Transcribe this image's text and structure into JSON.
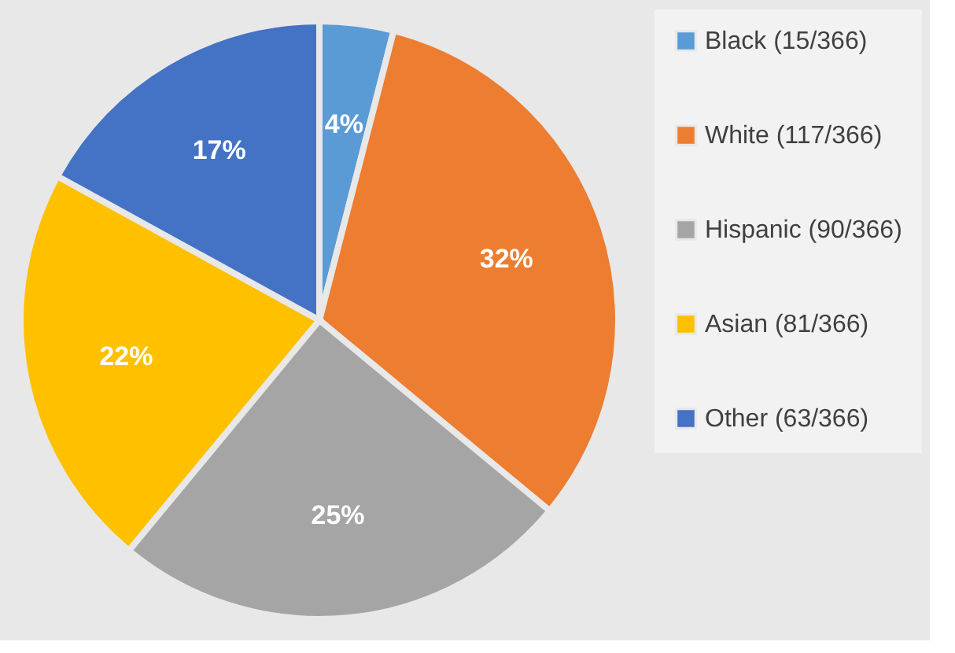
{
  "chart_data": {
    "type": "pie",
    "categories": [
      "Black (15/366)",
      "White (117/366)",
      "Hispanic (90/366)",
      "Asian (81/366)",
      "Other (63/366)"
    ],
    "values": [
      4,
      32,
      25,
      22,
      17
    ],
    "colors": [
      "#5b9bd5",
      "#ed7d31",
      "#a5a5a5",
      "#ffc000",
      "#4472c4"
    ],
    "value_labels": [
      "4%",
      "32%",
      "25%",
      "22%",
      "17%"
    ],
    "legend": "right"
  }
}
